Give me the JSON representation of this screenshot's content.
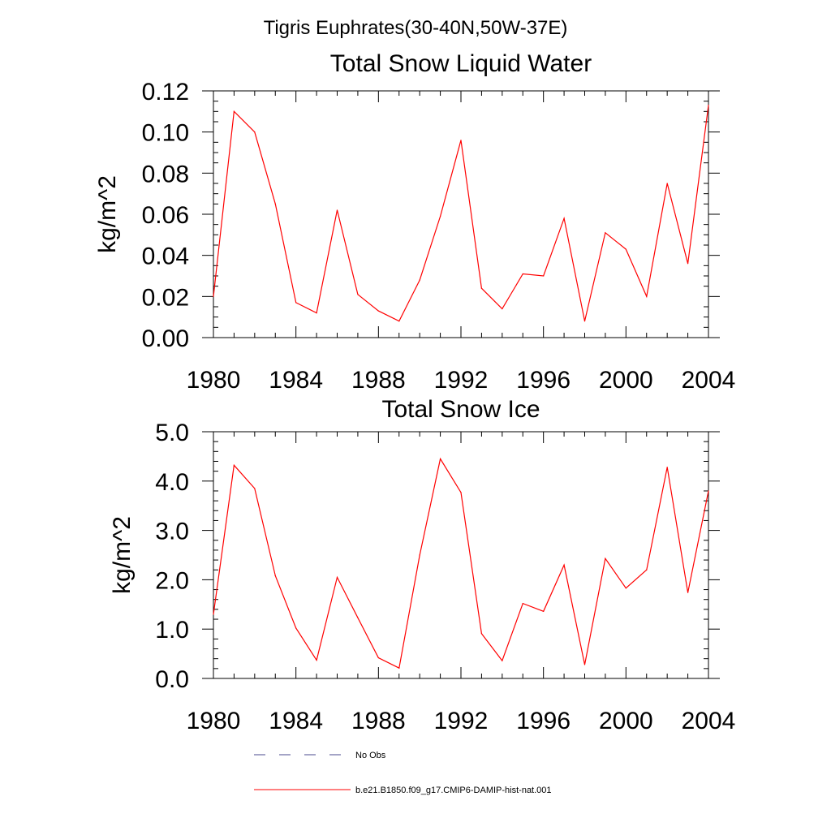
{
  "figure": {
    "suptitle": "Tigris Euphrates(30-40N,50W-37E)"
  },
  "legend": {
    "entries": [
      {
        "label": "No Obs",
        "color": "#4a4a8c",
        "style": "dashed"
      },
      {
        "label": "b.e21.B1850.f09_g17.CMIP6-DAMIP-hist-nat.001",
        "color": "#ff0000",
        "style": "solid"
      }
    ]
  },
  "chart_data": [
    {
      "type": "line",
      "title": "Total Snow Liquid Water",
      "xlabel": "",
      "ylabel": "kg/m^2",
      "xlim": [
        1980,
        2004
      ],
      "ylim": [
        0.0,
        0.12
      ],
      "xticks": [
        1980,
        1984,
        1988,
        1992,
        1996,
        2000,
        2004
      ],
      "xtick_labels": [
        "1980",
        "1984",
        "1988",
        "1992",
        "1996",
        "2000",
        "2004"
      ],
      "yticks": [
        0.0,
        0.02,
        0.04,
        0.06,
        0.08,
        0.1,
        0.12
      ],
      "ytick_labels": [
        "0.00",
        "0.02",
        "0.04",
        "0.06",
        "0.08",
        "0.10",
        "0.12"
      ],
      "grid": false,
      "x": [
        1980,
        1981,
        1982,
        1983,
        1984,
        1985,
        1986,
        1987,
        1988,
        1989,
        1990,
        1991,
        1992,
        1993,
        1994,
        1995,
        1996,
        1997,
        1998,
        1999,
        2000,
        2001,
        2002,
        2003,
        2004
      ],
      "series": [
        {
          "name": "b.e21.B1850.f09_g17.CMIP6-DAMIP-hist-nat.001",
          "color": "#ff0000",
          "values": [
            0.02,
            0.11,
            0.1,
            0.065,
            0.017,
            0.012,
            0.062,
            0.021,
            0.013,
            0.008,
            0.028,
            0.059,
            0.096,
            0.024,
            0.014,
            0.031,
            0.03,
            0.058,
            0.008,
            0.051,
            0.043,
            0.02,
            0.075,
            0.036,
            0.113
          ]
        }
      ]
    },
    {
      "type": "line",
      "title": "Total Snow Ice",
      "xlabel": "",
      "ylabel": "kg/m^2",
      "xlim": [
        1980,
        2004
      ],
      "ylim": [
        0.0,
        5.0
      ],
      "xticks": [
        1980,
        1984,
        1988,
        1992,
        1996,
        2000,
        2004
      ],
      "xtick_labels": [
        "1980",
        "1984",
        "1988",
        "1992",
        "1996",
        "2000",
        "2004"
      ],
      "yticks": [
        0.0,
        1.0,
        2.0,
        3.0,
        4.0,
        5.0
      ],
      "ytick_labels": [
        "0.0",
        "1.0",
        "2.0",
        "3.0",
        "4.0",
        "5.0"
      ],
      "grid": false,
      "x": [
        1980,
        1981,
        1982,
        1983,
        1984,
        1985,
        1986,
        1987,
        1988,
        1989,
        1990,
        1991,
        1992,
        1993,
        1994,
        1995,
        1996,
        1997,
        1998,
        1999,
        2000,
        2001,
        2002,
        2003,
        2004
      ],
      "series": [
        {
          "name": "b.e21.B1850.f09_g17.CMIP6-DAMIP-hist-nat.001",
          "color": "#ff0000",
          "values": [
            1.3,
            4.32,
            3.85,
            2.08,
            1.02,
            0.37,
            2.05,
            1.23,
            0.42,
            0.21,
            2.5,
            4.45,
            3.77,
            0.91,
            0.36,
            1.52,
            1.36,
            2.3,
            0.28,
            2.43,
            1.83,
            2.2,
            4.28,
            1.74,
            3.8
          ]
        }
      ]
    }
  ]
}
